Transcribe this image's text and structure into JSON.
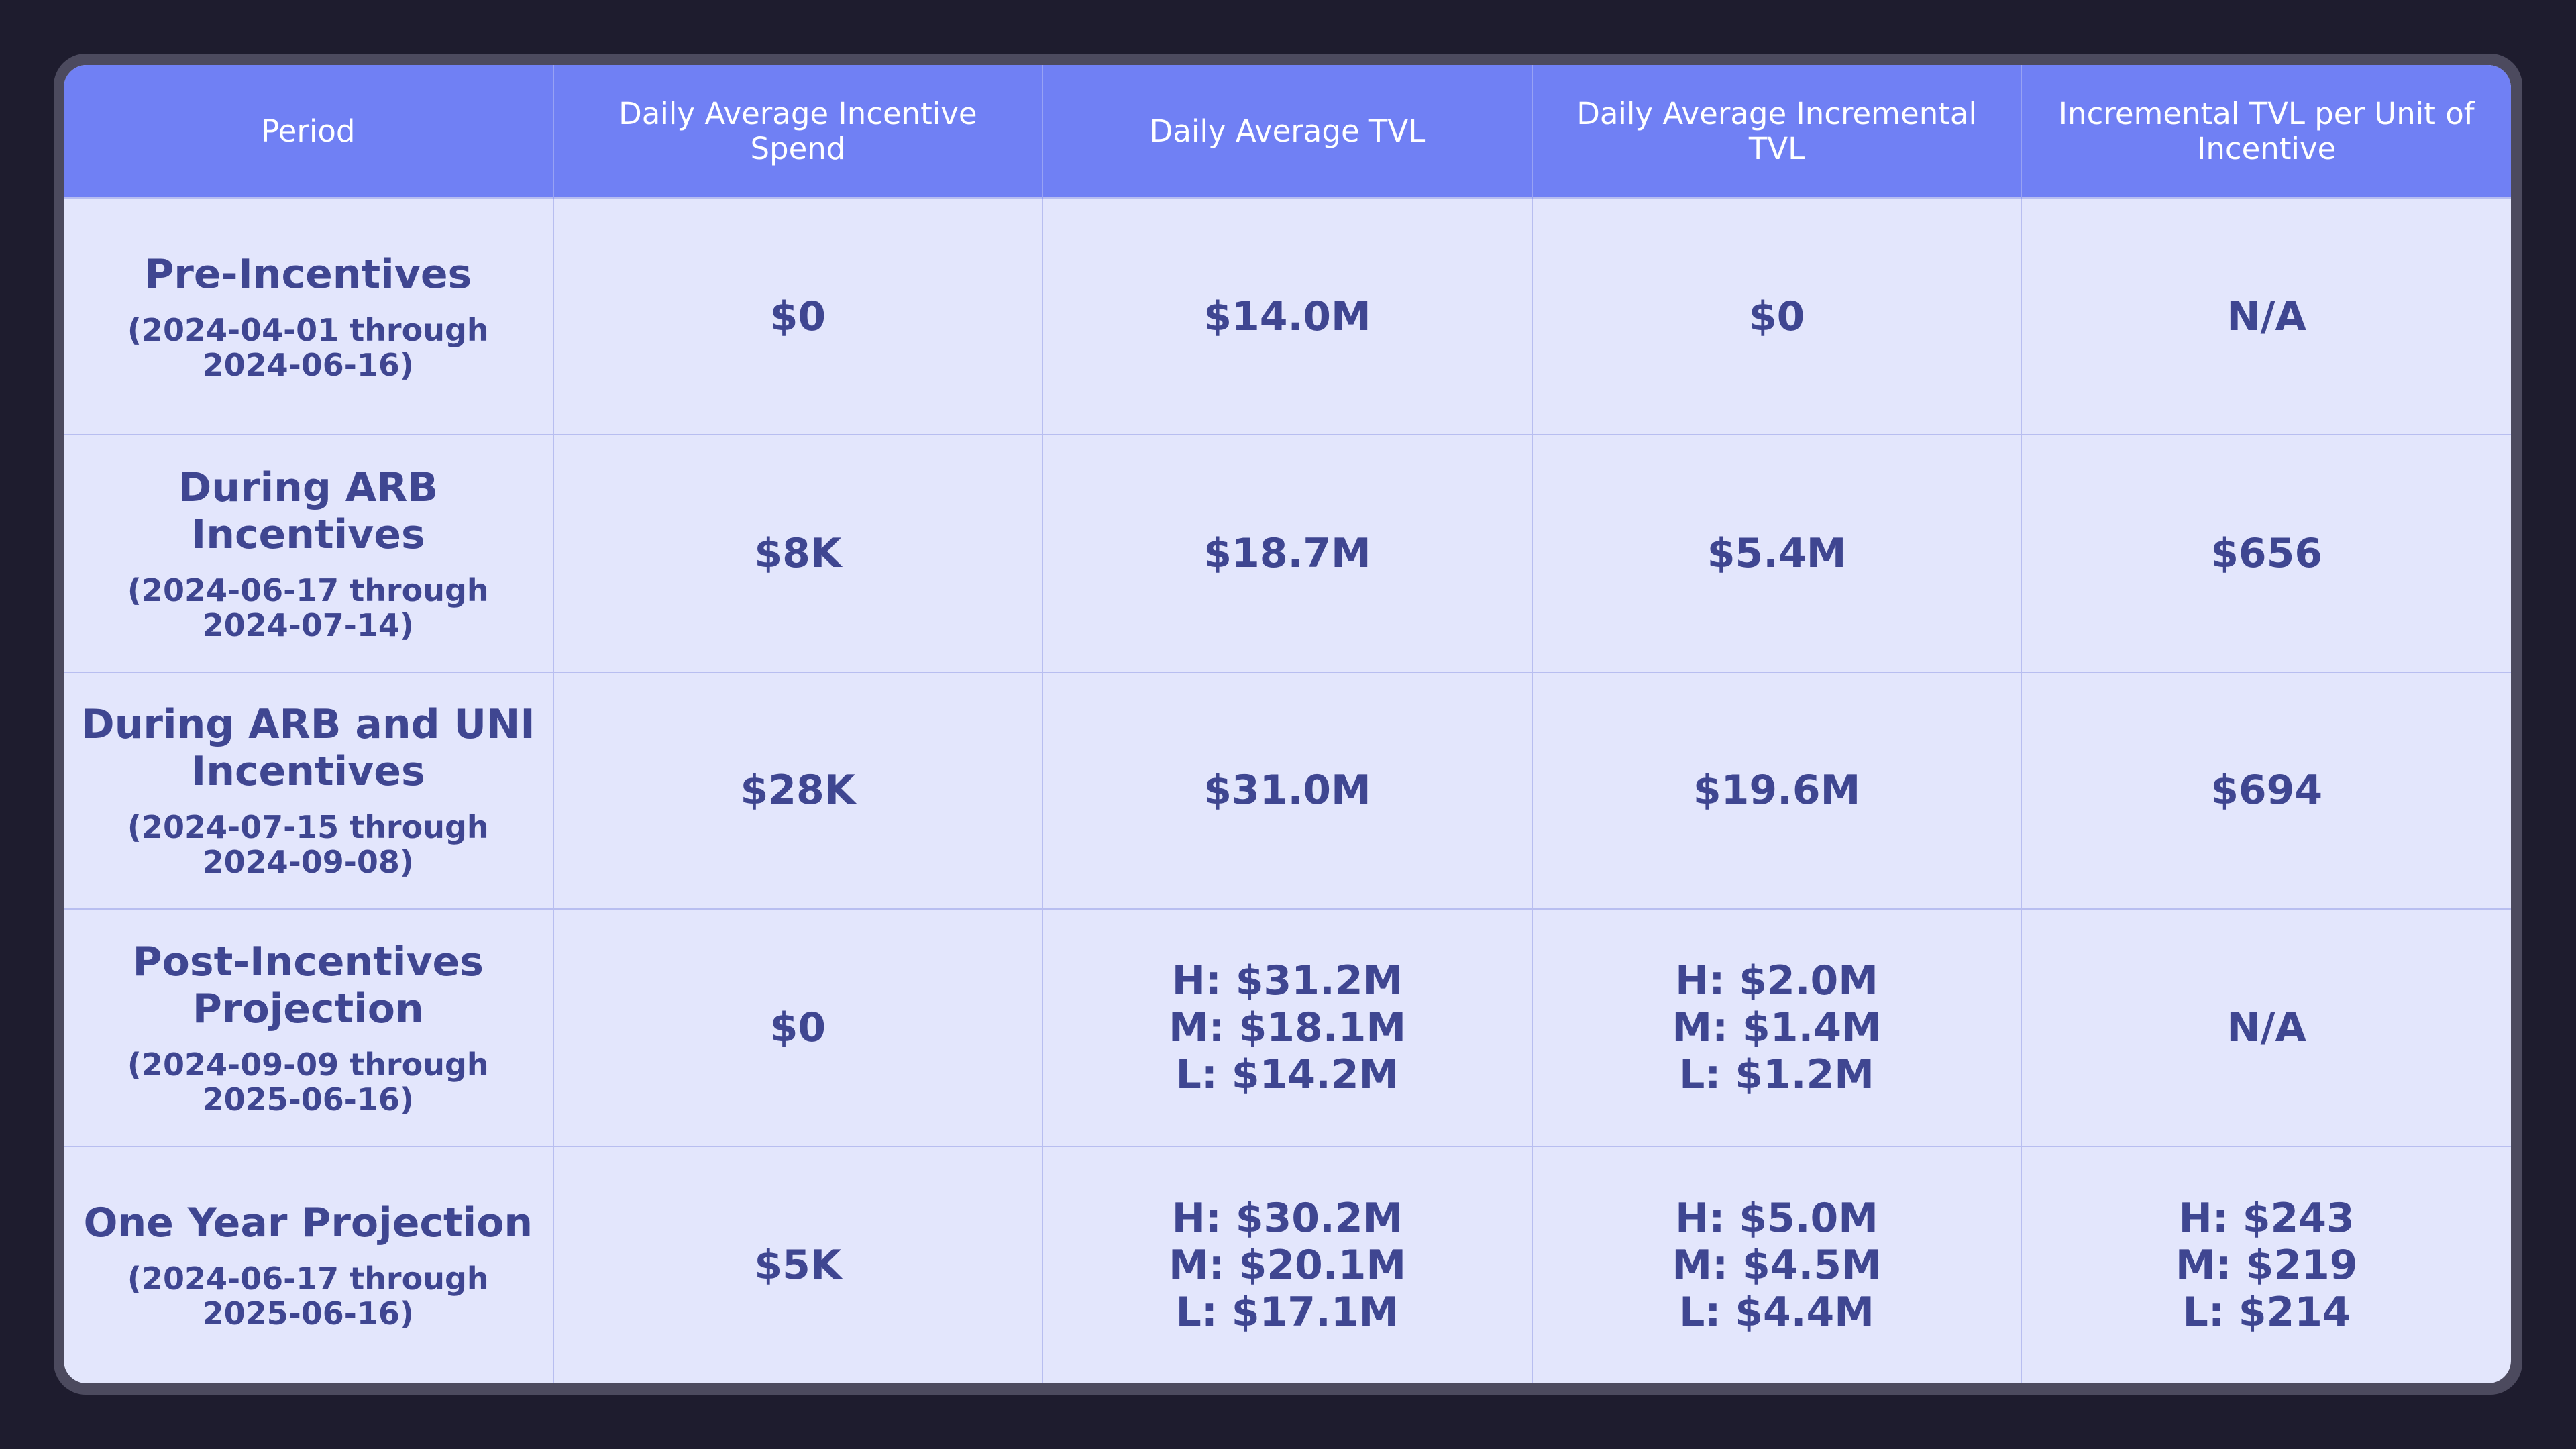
{
  "headers": [
    "Period",
    "Daily Average Incentive Spend",
    "Daily Average TVL",
    "Daily Average Incremental TVL",
    "Incremental TVL per Unit of Incentive"
  ],
  "rows": [
    {
      "period": "Pre-Incentives",
      "range": "(2024-04-01 through 2024-06-16)",
      "spend": [
        "$0"
      ],
      "tvl": [
        "$14.0M"
      ],
      "incremental": [
        "$0"
      ],
      "per_unit": [
        "N/A"
      ]
    },
    {
      "period": "During ARB Incentives",
      "range": "(2024-06-17 through 2024-07-14)",
      "spend": [
        "$8K"
      ],
      "tvl": [
        "$18.7M"
      ],
      "incremental": [
        "$5.4M"
      ],
      "per_unit": [
        "$656"
      ]
    },
    {
      "period": "During ARB and UNI Incentives",
      "range": "(2024-07-15 through 2024-09-08)",
      "spend": [
        "$28K"
      ],
      "tvl": [
        "$31.0M"
      ],
      "incremental": [
        "$19.6M"
      ],
      "per_unit": [
        "$694"
      ]
    },
    {
      "period": "Post-Incentives Projection",
      "range": "(2024-09-09 through 2025-06-16)",
      "spend": [
        "$0"
      ],
      "tvl": [
        "H: $31.2M",
        "M: $18.1M",
        "L: $14.2M"
      ],
      "incremental": [
        "H: $2.0M",
        "M: $1.4M",
        "L: $1.2M"
      ],
      "per_unit": [
        "N/A"
      ]
    },
    {
      "period": "One Year Projection",
      "range": "(2024-06-17 through 2025-06-16)",
      "spend": [
        "$5K"
      ],
      "tvl": [
        "H: $30.2M",
        "M: $20.1M",
        "L: $17.1M"
      ],
      "incremental": [
        "H: $5.0M",
        "M: $4.5M",
        "L: $4.4M"
      ],
      "per_unit": [
        "H: $243",
        "M: $219",
        "L: $214"
      ]
    }
  ],
  "colors": {
    "page_background": "#1e1c2e",
    "frame": "#4c4a5e",
    "header_background": "#7080f4",
    "header_text": "#ffffff",
    "cell_background": "#e3e6fc",
    "cell_text": "#3f4691",
    "grid_line": "#b8bef0"
  }
}
